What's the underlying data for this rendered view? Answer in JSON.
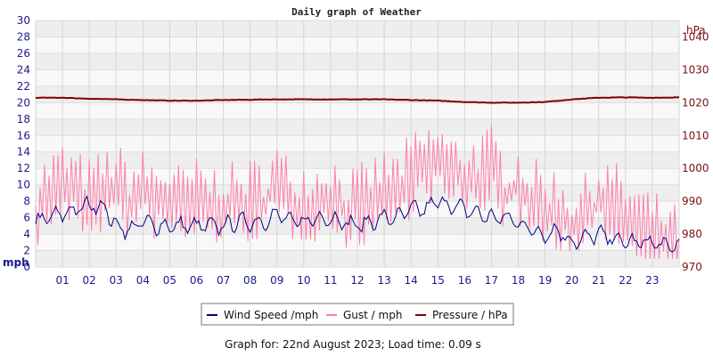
{
  "chart_data": {
    "type": "line",
    "title": "Daily graph of Weather",
    "left_axis": {
      "unit": "mph",
      "ylim": [
        0,
        30
      ],
      "ticks": [
        "0",
        "2",
        "4",
        "6",
        "8",
        "10",
        "12",
        "14",
        "16",
        "18",
        "20",
        "22",
        "24",
        "26",
        "28",
        "30"
      ]
    },
    "right_axis": {
      "unit": "hPa",
      "ylim": [
        970,
        1045
      ],
      "ticks": [
        "970",
        "980",
        "990",
        "1000",
        "1010",
        "1020",
        "1030",
        "1040"
      ]
    },
    "x_axis": {
      "xlim": [
        0,
        24
      ],
      "ticks": [
        "01",
        "02",
        "03",
        "04",
        "05",
        "06",
        "07",
        "08",
        "09",
        "10",
        "11",
        "12",
        "13",
        "14",
        "15",
        "16",
        "17",
        "18",
        "19",
        "20",
        "21",
        "22",
        "23"
      ]
    },
    "grid": "horizontal-bands",
    "legend_position": "bottom",
    "series": [
      {
        "name": "Wind Speed /mph",
        "axis": "left",
        "color": "#000080",
        "x": [
          0,
          0.5,
          1,
          1.5,
          2,
          2.5,
          3,
          3.5,
          4,
          4.5,
          5,
          5.5,
          6,
          6.5,
          7,
          7.5,
          8,
          8.5,
          9,
          9.5,
          10,
          10.5,
          11,
          11.5,
          12,
          12.5,
          13,
          13.5,
          14,
          14.5,
          15,
          15.5,
          16,
          16.5,
          17,
          17.5,
          18,
          18.5,
          19,
          19.5,
          20,
          20.5,
          21,
          21.5,
          22,
          22.5,
          23,
          23.5,
          24
        ],
        "values": [
          5.5,
          6,
          6.5,
          7,
          7.5,
          7.5,
          5,
          4.5,
          5.5,
          5,
          5,
          5,
          5,
          5,
          5,
          5.5,
          5.5,
          5.5,
          6.5,
          5.5,
          5.5,
          6,
          6,
          5.5,
          5,
          5.5,
          6,
          6,
          7,
          7,
          8,
          7.5,
          7,
          6.5,
          6,
          6,
          5.5,
          4.5,
          4,
          4.5,
          3,
          3.5,
          4,
          3.5,
          3,
          3,
          3,
          2.5,
          2.5
        ]
      },
      {
        "name": "Gust / mph",
        "axis": "left",
        "color": "#ff7faa",
        "x": [
          0,
          0.5,
          1,
          1.5,
          2,
          2.5,
          3,
          3.5,
          4,
          4.5,
          5,
          5.5,
          6,
          6.5,
          7,
          7.5,
          8,
          8.5,
          9,
          9.5,
          10,
          10.5,
          11,
          11.5,
          12,
          12.5,
          13,
          13.5,
          14,
          14.5,
          15,
          15.5,
          16,
          16.5,
          17,
          17.5,
          18,
          18.5,
          19,
          19.5,
          20,
          20.5,
          21,
          21.5,
          22,
          22.5,
          23,
          23.5,
          24
        ],
        "values": [
          9,
          11,
          12,
          11,
          10,
          11,
          12,
          10,
          11,
          10,
          10,
          9,
          10,
          9,
          10,
          9,
          10,
          10,
          12,
          10,
          10,
          10,
          11,
          9,
          9,
          10,
          11,
          11,
          13,
          14,
          15,
          13,
          13,
          13,
          14,
          11,
          12,
          10,
          9,
          9,
          7,
          8,
          10,
          10,
          8,
          7,
          6,
          5,
          4
        ]
      },
      {
        "name": "Pressure / hPa",
        "axis": "right",
        "color": "#800000",
        "x": [
          0,
          1,
          2,
          3,
          4,
          5,
          6,
          7,
          8,
          9,
          10,
          11,
          12,
          13,
          14,
          15,
          16,
          17,
          18,
          19,
          20,
          21,
          22,
          23,
          24
        ],
        "values": [
          1021.5,
          1021.5,
          1021.2,
          1021,
          1020.8,
          1020.6,
          1020.6,
          1020.8,
          1020.9,
          1021,
          1021,
          1021,
          1021,
          1021,
          1020.8,
          1020.6,
          1020.2,
          1020,
          1020,
          1020.2,
          1021,
          1021.5,
          1021.6,
          1021.5,
          1021.6
        ]
      }
    ]
  },
  "legend": {
    "items": [
      {
        "label": "Wind Speed /mph",
        "color": "#000080"
      },
      {
        "label": "Gust / mph",
        "color": "#ff7faa"
      },
      {
        "label": "Pressure / hPa",
        "color": "#800000"
      }
    ]
  },
  "footer": {
    "text": "Graph for: 22nd August 2023; Load time: 0.09 s"
  }
}
